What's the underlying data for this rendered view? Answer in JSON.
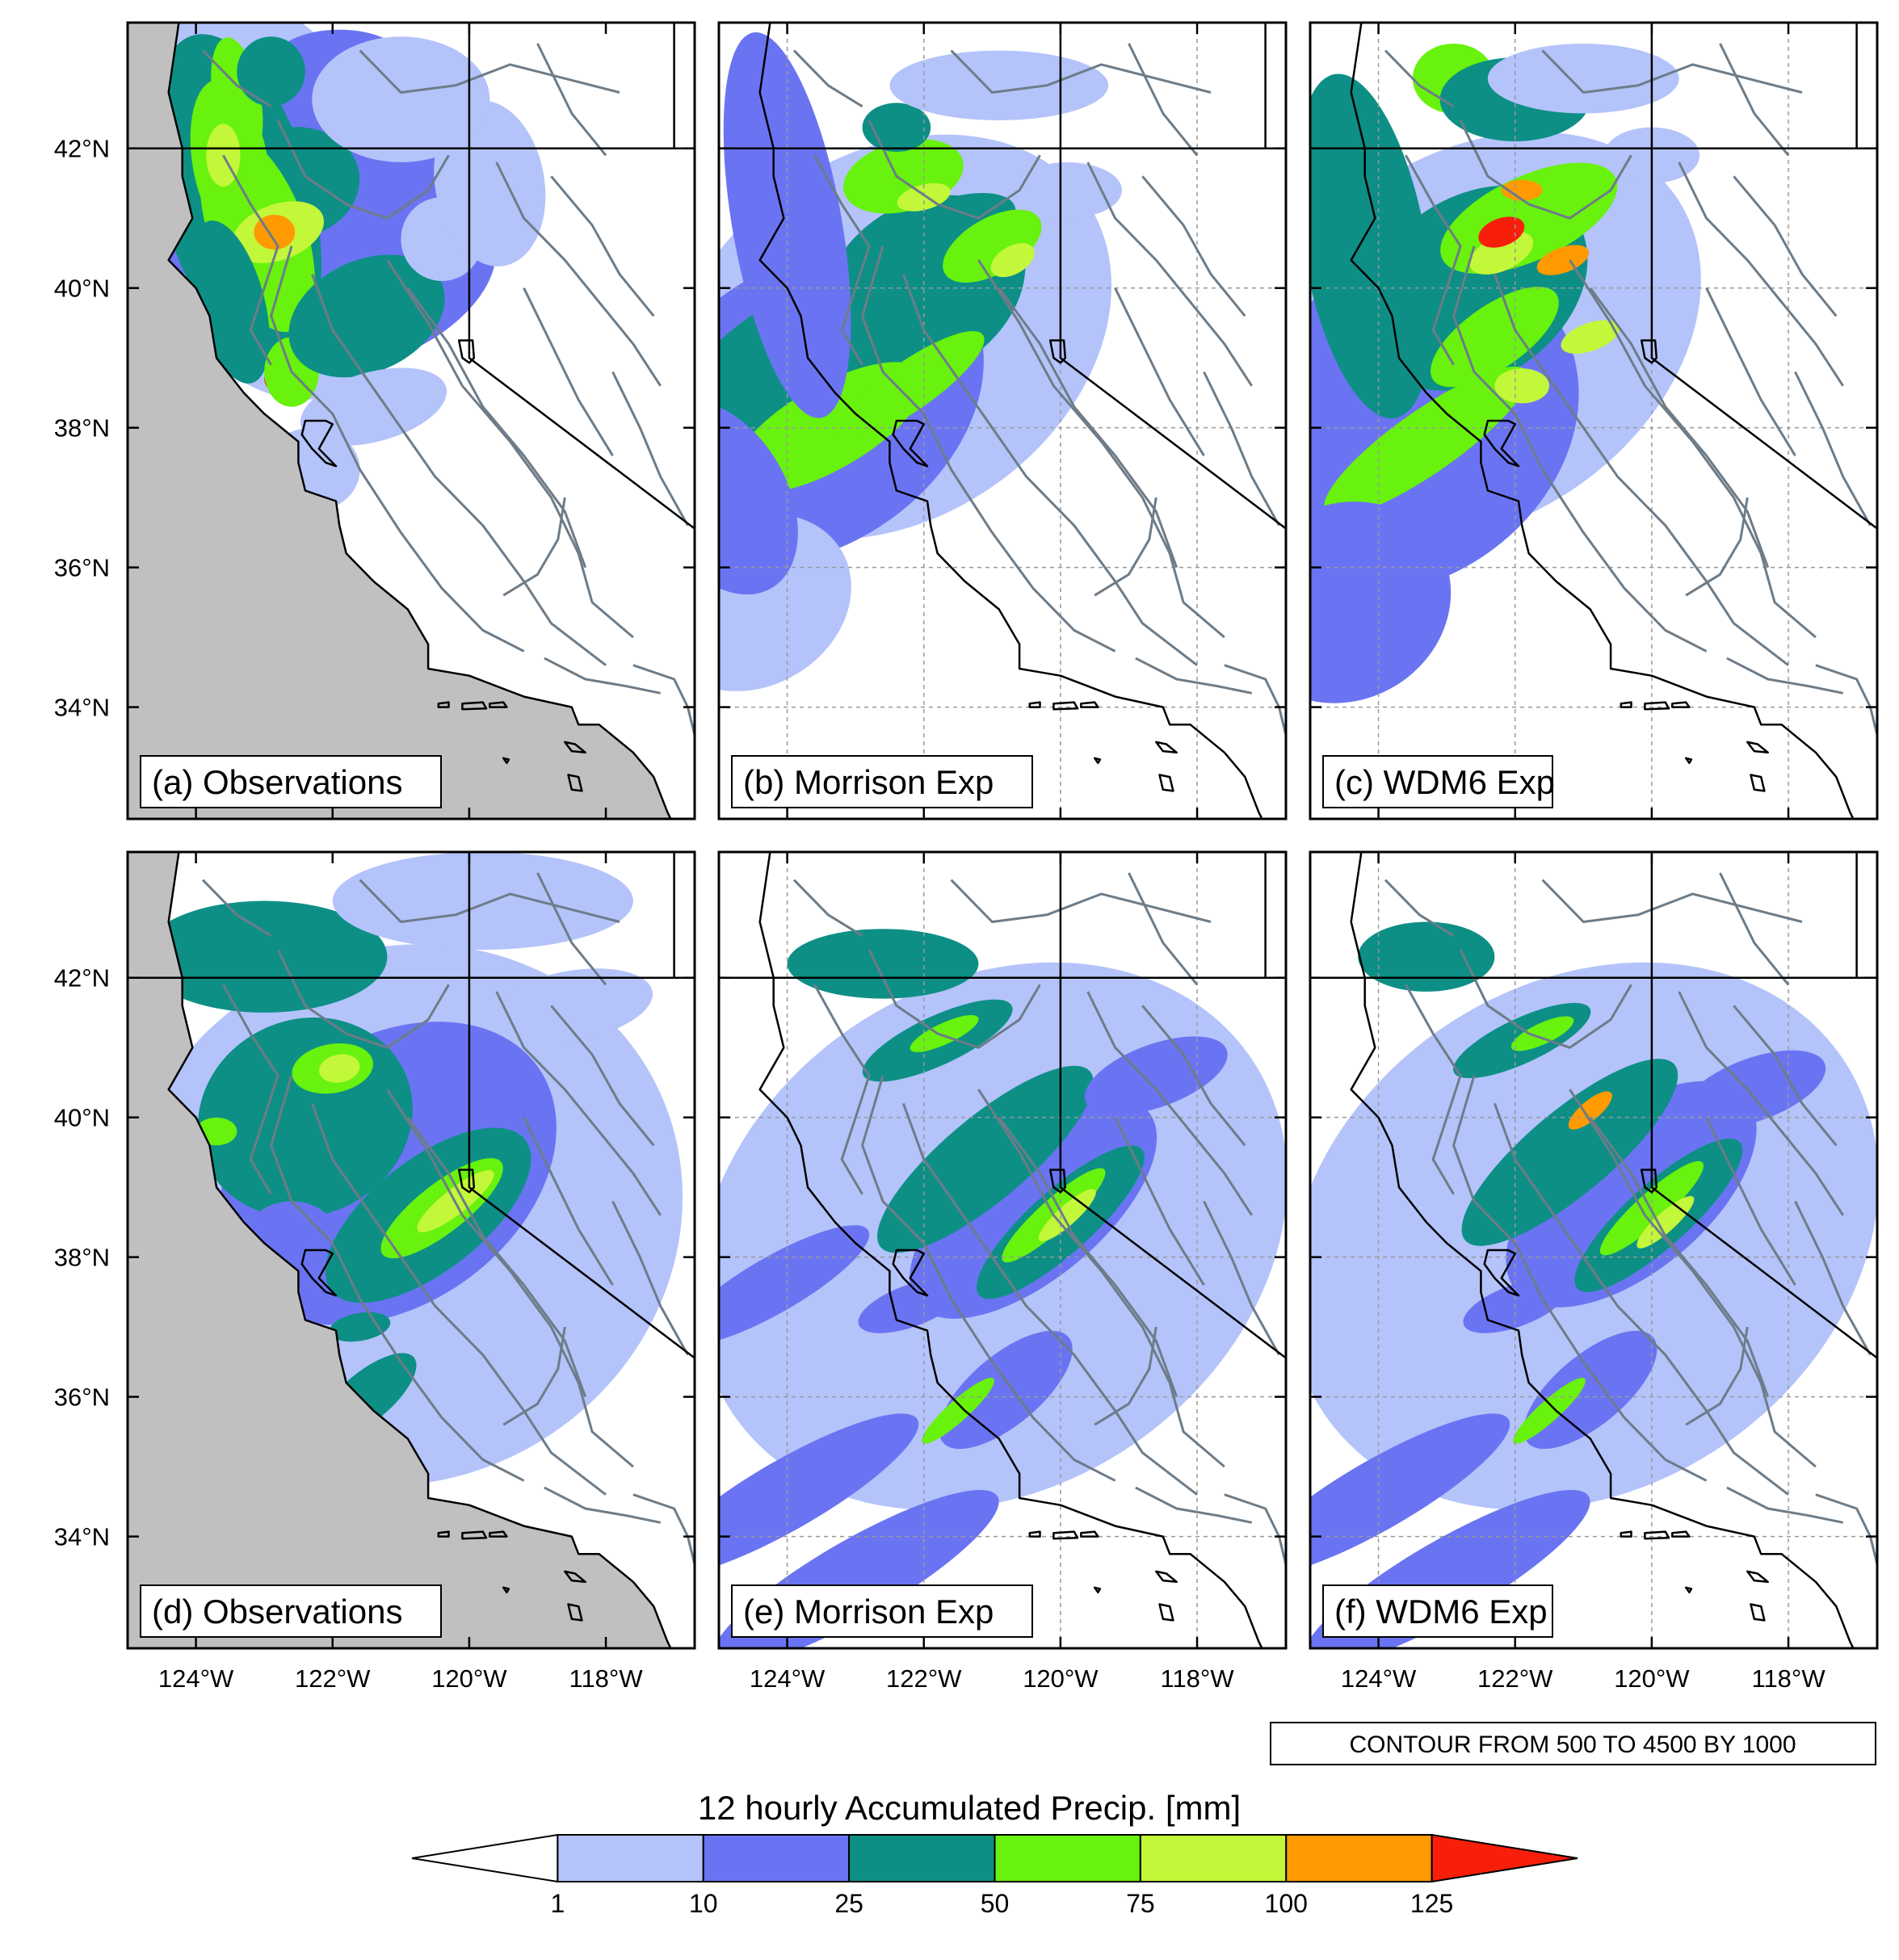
{
  "panels": [
    {
      "label": "(a) Observations",
      "type": "observations",
      "period": 1
    },
    {
      "label": "(b) Morrison Exp",
      "type": "model",
      "period": 1
    },
    {
      "label": "(c) WDM6 Exp",
      "type": "model",
      "period": 1
    },
    {
      "label": "(d) Observations",
      "type": "observations",
      "period": 2
    },
    {
      "label": "(e) Morrison Exp",
      "type": "model",
      "period": 2
    },
    {
      "label": "(f) WDM6 Exp",
      "type": "model",
      "period": 2
    }
  ],
  "axes": {
    "lon_ticks": [
      "124°W",
      "122°W",
      "120°W",
      "118°W"
    ],
    "lat_ticks": [
      "42°N",
      "40°N",
      "38°N",
      "36°N",
      "34°N"
    ],
    "lon_range": [
      -125,
      -116.7
    ],
    "lat_range": [
      32.4,
      43.8
    ]
  },
  "contour_note": "CONTOUR FROM 500 TO 4500 BY 1000",
  "colorbar": {
    "title": "12 hourly Accumulated Precip.  [mm]",
    "labels": [
      "1",
      "10",
      "25",
      "50",
      "75",
      "100",
      "125"
    ],
    "colors": [
      "#ffffff",
      "#b4c3fa",
      "#6a74f2",
      "#0d8f86",
      "#68f20d",
      "#c3f73a",
      "#ff9a00",
      "#f71e0a"
    ]
  },
  "colors": {
    "land_mask": "#c0c0c0",
    "terrain_contour": "#6d7c88",
    "border": "#000000"
  }
}
